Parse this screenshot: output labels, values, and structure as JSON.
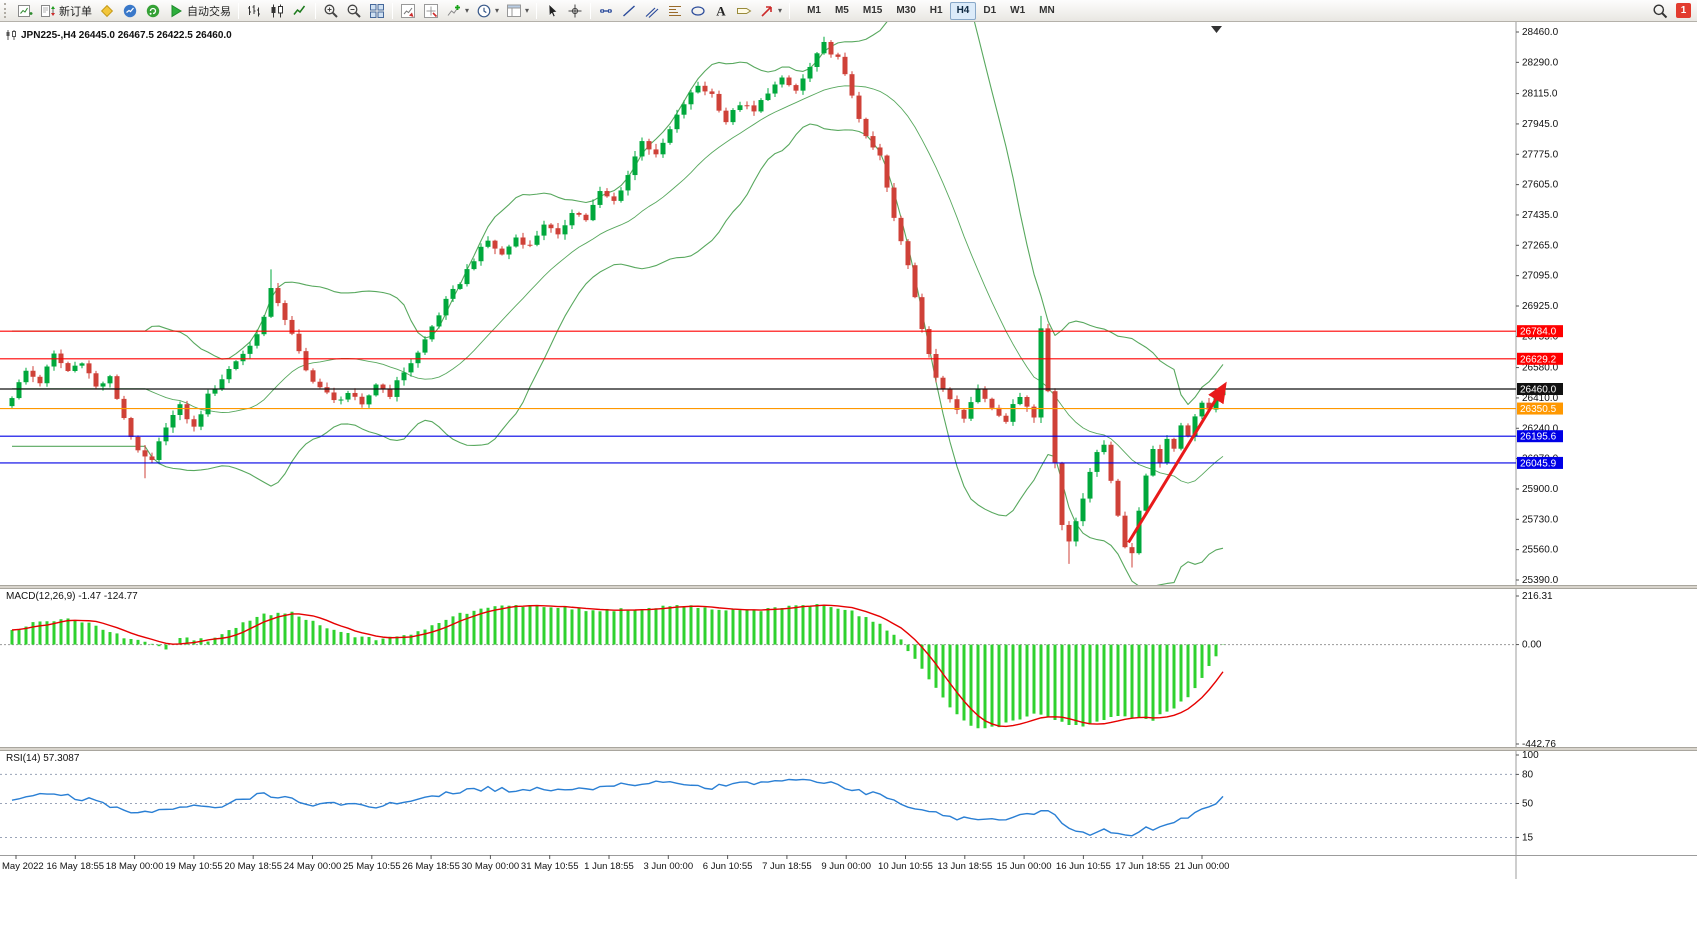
{
  "toolbar": {
    "items": [
      {
        "icon": "new-chart"
      },
      {
        "icon": "new-order",
        "label": "新订单"
      },
      {
        "icon": "metaeditor"
      },
      {
        "icon": "market-watch"
      },
      {
        "icon": "community"
      },
      {
        "icon": "autotrading",
        "label": "自动交易"
      },
      {
        "sep": true
      },
      {
        "icon": "bar-chart"
      },
      {
        "icon": "candle-chart"
      },
      {
        "icon": "line-chart"
      },
      {
        "sep": true
      },
      {
        "icon": "zoom-in"
      },
      {
        "icon": "zoom-out"
      },
      {
        "icon": "tile-windows"
      },
      {
        "sep": true
      },
      {
        "icon": "arrange-up"
      },
      {
        "icon": "arrange-track"
      },
      {
        "icon": "add-indicator",
        "dropdown": true
      },
      {
        "icon": "periods",
        "dropdown": true
      },
      {
        "icon": "templates",
        "dropdown": true
      },
      {
        "sep": true
      },
      {
        "icon": "cursor"
      },
      {
        "icon": "crosshair"
      },
      {
        "sep": true
      },
      {
        "icon": "horizontal-line"
      },
      {
        "icon": "trendline"
      },
      {
        "icon": "channel"
      },
      {
        "icon": "fibonacci"
      },
      {
        "icon": "shapes"
      },
      {
        "icon": "text"
      },
      {
        "icon": "text-label"
      },
      {
        "icon": "arrows",
        "dropdown": true
      },
      {
        "sep": true
      }
    ],
    "timeframes": [
      "M1",
      "M5",
      "M15",
      "M30",
      "H1",
      "H4",
      "D1",
      "W1",
      "MN"
    ],
    "active_timeframe": "H4",
    "notification_count": "1"
  },
  "chart_header": {
    "title": "JPN225-,H4 26445.0 26467.5 26422.5 26460.0"
  },
  "chart_data": [
    {
      "type": "candlestick",
      "symbol": "JPN225-",
      "timeframe": "H4",
      "open": 26445.0,
      "high": 26467.5,
      "low": 26422.5,
      "close": 26460.0,
      "colors": {
        "up": "#00a83c",
        "down": "#cf4138"
      },
      "y_axis": {
        "min": 25390.0,
        "max": 28460.0,
        "ticks": [
          "28460.0",
          "28290.0",
          "28115.0",
          "27945.0",
          "27775.0",
          "27605.0",
          "27435.0",
          "27265.0",
          "27095.0",
          "26925.0",
          "26755.0",
          "26580.0",
          "26410.0",
          "26240.0",
          "26070.0",
          "25900.0",
          "25730.0",
          "25560.0",
          "25390.0"
        ]
      },
      "x_labels": [
        "May 2022",
        "16 May 18:55",
        "18 May 00:00",
        "19 May 10:55",
        "20 May 18:55",
        "24 May 00:00",
        "25 May 10:55",
        "26 May 18:55",
        "30 May 00:00",
        "31 May 10:55",
        "1 Jun 18:55",
        "3 Jun 00:00",
        "6 Jun 10:55",
        "7 Jun 18:55",
        "9 Jun 00:00",
        "10 Jun 10:55",
        "13 Jun 18:55",
        "15 Jun 00:00",
        "16 Jun 10:55",
        "17 Jun 18:55",
        "21 Jun 00:00"
      ],
      "close_anchors": [
        [
          0,
          26420
        ],
        [
          2,
          26560
        ],
        [
          4,
          26500
        ],
        [
          6,
          26650
        ],
        [
          8,
          26560
        ],
        [
          10,
          26620
        ],
        [
          12,
          26470
        ],
        [
          14,
          26520
        ],
        [
          16,
          26300
        ],
        [
          18,
          26100
        ],
        [
          20,
          26050
        ],
        [
          22,
          26260
        ],
        [
          24,
          26360
        ],
        [
          26,
          26240
        ],
        [
          28,
          26420
        ],
        [
          30,
          26520
        ],
        [
          32,
          26620
        ],
        [
          34,
          26700
        ],
        [
          36,
          26860
        ],
        [
          37,
          27010
        ],
        [
          38,
          26950
        ],
        [
          40,
          26760
        ],
        [
          42,
          26560
        ],
        [
          44,
          26470
        ],
        [
          46,
          26390
        ],
        [
          48,
          26440
        ],
        [
          50,
          26360
        ],
        [
          52,
          26490
        ],
        [
          54,
          26430
        ],
        [
          56,
          26560
        ],
        [
          58,
          26660
        ],
        [
          60,
          26810
        ],
        [
          62,
          26950
        ],
        [
          64,
          27060
        ],
        [
          66,
          27190
        ],
        [
          68,
          27290
        ],
        [
          70,
          27210
        ],
        [
          72,
          27310
        ],
        [
          74,
          27260
        ],
        [
          76,
          27390
        ],
        [
          78,
          27310
        ],
        [
          80,
          27460
        ],
        [
          82,
          27410
        ],
        [
          84,
          27560
        ],
        [
          86,
          27510
        ],
        [
          88,
          27660
        ],
        [
          90,
          27860
        ],
        [
          92,
          27760
        ],
        [
          94,
          27910
        ],
        [
          96,
          28060
        ],
        [
          98,
          28160
        ],
        [
          100,
          28110
        ],
        [
          102,
          27960
        ],
        [
          104,
          28060
        ],
        [
          106,
          28010
        ],
        [
          108,
          28130
        ],
        [
          110,
          28190
        ],
        [
          112,
          28130
        ],
        [
          114,
          28260
        ],
        [
          116,
          28390
        ],
        [
          118,
          28310
        ],
        [
          120,
          28110
        ],
        [
          122,
          27860
        ],
        [
          124,
          27760
        ],
        [
          126,
          27410
        ],
        [
          128,
          27160
        ],
        [
          130,
          26810
        ],
        [
          132,
          26510
        ],
        [
          134,
          26410
        ],
        [
          136,
          26310
        ],
        [
          138,
          26460
        ],
        [
          140,
          26360
        ],
        [
          142,
          26290
        ],
        [
          144,
          26430
        ],
        [
          146,
          26300
        ],
        [
          147,
          26800
        ],
        [
          148,
          26450
        ],
        [
          149,
          26050
        ],
        [
          150,
          25700
        ],
        [
          151,
          25600
        ],
        [
          152,
          25720
        ],
        [
          153,
          25850
        ],
        [
          154,
          26000
        ],
        [
          155,
          26100
        ],
        [
          156,
          26150
        ],
        [
          157,
          25950
        ],
        [
          158,
          25750
        ],
        [
          159,
          25580
        ],
        [
          160,
          25540
        ],
        [
          161,
          25780
        ],
        [
          162,
          25980
        ],
        [
          163,
          26120
        ],
        [
          164,
          26050
        ],
        [
          165,
          26180
        ],
        [
          166,
          26120
        ],
        [
          167,
          26250
        ],
        [
          168,
          26200
        ],
        [
          169,
          26300
        ],
        [
          170,
          26380
        ],
        [
          171,
          26350
        ],
        [
          172,
          26430
        ],
        [
          173,
          26460
        ]
      ],
      "wick_highs": [
        [
          37,
          27130
        ],
        [
          116,
          28430
        ],
        [
          147,
          26870
        ]
      ],
      "wick_lows": [
        [
          19,
          25960
        ],
        [
          151,
          25480
        ],
        [
          160,
          25460
        ]
      ],
      "indicators": {
        "bollinger": {
          "period": 20,
          "deviation": 2,
          "color": "#58a85e"
        }
      },
      "horizontal_lines": [
        {
          "price": 26784.0,
          "label": "26784.0",
          "color": "#ff0000"
        },
        {
          "price": 26629.2,
          "label": "26629.2",
          "color": "#ff0000"
        },
        {
          "price": 26460.0,
          "label": "26460.0",
          "color": "#111111"
        },
        {
          "price": 26350.5,
          "label": "26350.5",
          "color": "#ff9800"
        },
        {
          "price": 26195.6,
          "label": "26195.6",
          "color": "#0000e6"
        },
        {
          "price": 26045.9,
          "label": "26045.9",
          "color": "#0000e6"
        }
      ],
      "trend_arrow": {
        "from": {
          "candle": 159.5,
          "price": 25600
        },
        "to": {
          "candle": 173.2,
          "price": 26480
        },
        "color": "#e81a1a"
      }
    },
    {
      "type": "macd",
      "label": "MACD(12,26,9) -1.47 -124.77",
      "values": {
        "main": -1.47,
        "signal": -124.77
      },
      "scale": {
        "min": -442.76,
        "max": 216.31,
        "labels": [
          "216.31",
          "0.00",
          "-442.76"
        ]
      },
      "colors": {
        "histogram": "#2fd12f",
        "signal": "#e60000"
      },
      "histogram_anchors": [
        [
          0,
          70
        ],
        [
          4,
          100
        ],
        [
          8,
          120
        ],
        [
          12,
          80
        ],
        [
          16,
          35
        ],
        [
          20,
          10
        ],
        [
          22,
          -15
        ],
        [
          24,
          25
        ],
        [
          28,
          20
        ],
        [
          32,
          80
        ],
        [
          34,
          110
        ],
        [
          36,
          135
        ],
        [
          40,
          140
        ],
        [
          44,
          85
        ],
        [
          48,
          45
        ],
        [
          52,
          25
        ],
        [
          56,
          40
        ],
        [
          60,
          85
        ],
        [
          64,
          135
        ],
        [
          68,
          170
        ],
        [
          72,
          175
        ],
        [
          76,
          168
        ],
        [
          80,
          162
        ],
        [
          84,
          150
        ],
        [
          88,
          158
        ],
        [
          92,
          163
        ],
        [
          96,
          172
        ],
        [
          100,
          160
        ],
        [
          104,
          148
        ],
        [
          108,
          156
        ],
        [
          112,
          168
        ],
        [
          116,
          178
        ],
        [
          120,
          148
        ],
        [
          124,
          85
        ],
        [
          127,
          15
        ],
        [
          129,
          -70
        ],
        [
          131,
          -160
        ],
        [
          133,
          -240
        ],
        [
          135,
          -310
        ],
        [
          137,
          -355
        ],
        [
          139,
          -375
        ],
        [
          141,
          -360
        ],
        [
          143,
          -340
        ],
        [
          145,
          -320
        ],
        [
          147,
          -305
        ],
        [
          149,
          -330
        ],
        [
          151,
          -355
        ],
        [
          153,
          -365
        ],
        [
          155,
          -345
        ],
        [
          157,
          -330
        ],
        [
          159,
          -315
        ],
        [
          161,
          -325
        ],
        [
          163,
          -335
        ],
        [
          165,
          -300
        ],
        [
          167,
          -255
        ],
        [
          169,
          -200
        ],
        [
          170,
          -150
        ],
        [
          171,
          -100
        ],
        [
          172,
          -50
        ],
        [
          173,
          -1.47
        ]
      ]
    },
    {
      "type": "rsi",
      "label": "RSI(14) 57.3087",
      "value": 57.3087,
      "color": "#2a7fd4",
      "scale": {
        "min": 0,
        "max": 100,
        "labels": [
          "100",
          "80",
          "50",
          "15"
        ]
      },
      "levels": [
        80,
        50,
        15
      ],
      "value_anchors": [
        [
          0,
          55
        ],
        [
          4,
          60
        ],
        [
          8,
          58
        ],
        [
          12,
          52
        ],
        [
          16,
          42
        ],
        [
          20,
          40
        ],
        [
          24,
          48
        ],
        [
          28,
          45
        ],
        [
          32,
          52
        ],
        [
          36,
          60
        ],
        [
          40,
          55
        ],
        [
          44,
          48
        ],
        [
          48,
          50
        ],
        [
          52,
          47
        ],
        [
          56,
          52
        ],
        [
          60,
          58
        ],
        [
          64,
          63
        ],
        [
          68,
          66
        ],
        [
          72,
          62
        ],
        [
          76,
          66
        ],
        [
          80,
          63
        ],
        [
          84,
          67
        ],
        [
          88,
          70
        ],
        [
          92,
          73
        ],
        [
          96,
          71
        ],
        [
          100,
          67
        ],
        [
          104,
          70
        ],
        [
          108,
          72
        ],
        [
          112,
          75
        ],
        [
          116,
          73
        ],
        [
          120,
          65
        ],
        [
          124,
          58
        ],
        [
          128,
          48
        ],
        [
          132,
          40
        ],
        [
          136,
          34
        ],
        [
          140,
          33
        ],
        [
          144,
          37
        ],
        [
          146,
          40
        ],
        [
          148,
          42
        ],
        [
          150,
          30
        ],
        [
          152,
          21
        ],
        [
          154,
          17
        ],
        [
          156,
          22
        ],
        [
          158,
          19
        ],
        [
          160,
          16
        ],
        [
          162,
          24
        ],
        [
          164,
          26
        ],
        [
          166,
          30
        ],
        [
          168,
          35
        ],
        [
          170,
          44
        ],
        [
          172,
          52
        ],
        [
          173,
          57.3087
        ]
      ]
    }
  ]
}
